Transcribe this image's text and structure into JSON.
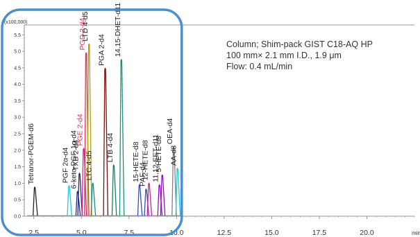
{
  "chart_data": {
    "type": "line",
    "scale_label": "(x100,000)",
    "x_unit": "min",
    "xlim": [
      2.0,
      22.5
    ],
    "ylim": [
      0,
      5.8
    ],
    "x_ticks": [
      2.5,
      5.0,
      7.5,
      10.0,
      12.5,
      15.0,
      17.5,
      20.0
    ],
    "x_tick_labels": [
      "2.5",
      "5.0",
      "7.5",
      "10.0",
      "12.5",
      "15.0",
      "17.5",
      "20.0"
    ],
    "y_ticks": [
      0.0,
      0.5,
      1.0,
      1.5,
      2.0,
      2.5,
      3.0,
      3.5,
      4.0,
      4.5,
      5.0,
      5.5
    ],
    "y_tick_labels": [
      "0.0",
      "0.5",
      "1.0",
      "1.5",
      "2.0",
      "2.5",
      "3.0",
      "3.5",
      "4.0",
      "4.5",
      "5.0",
      "5.5"
    ],
    "grid": false,
    "highlight_box": {
      "x_range": [
        2.0,
        10.2
      ],
      "color": "#4a90d0"
    },
    "peaks": [
      {
        "rt": 2.55,
        "height": 0.88,
        "color": "#222222",
        "label": "Tetranor-PGEM-d6",
        "label_color": "#222222"
      },
      {
        "rt": 4.35,
        "height": 0.92,
        "color": "#22c8d8",
        "label": "PGF 2α-d4",
        "label_color": "#222222"
      },
      {
        "rt": 4.8,
        "height": 0.75,
        "color": "#1f2a70",
        "label": "6-keto-PGF 1α-d4",
        "label_color": "#222222"
      },
      {
        "rt": 4.9,
        "height": 1.3,
        "color": "#1f2a70",
        "label": "TXB 2-d4",
        "label_color": "#222222"
      },
      {
        "rt": 5.12,
        "height": 2.05,
        "color": "#e0189a",
        "label": "PGE 2-d4",
        "label_color": "#e8305a"
      },
      {
        "rt": 5.25,
        "height": 4.95,
        "color": "#e8305a",
        "label": "PGD 2-d4",
        "label_color": "#e8305a"
      },
      {
        "rt": 5.4,
        "height": 5.22,
        "color": "#b8a000",
        "label": "LTD 4-d5",
        "label_color": "#222222"
      },
      {
        "rt": 5.6,
        "height": 1.0,
        "color": "#1a9080",
        "label": "LTC 4-d5",
        "label_color": "#222222"
      },
      {
        "rt": 6.25,
        "height": 4.48,
        "color": "#7a1010",
        "label": "PGA 2-d4",
        "label_color": "#222222"
      },
      {
        "rt": 6.7,
        "height": 1.55,
        "color": "#1a8060",
        "label": "LTB 4-d4",
        "label_color": "#222222"
      },
      {
        "rt": 7.1,
        "height": 4.75,
        "color": "#1a9080",
        "label": "14,15-DHET-d11",
        "label_color": "#222222"
      },
      {
        "rt": 8.05,
        "height": 0.95,
        "color": "#3050c0",
        "label": "15-HETE-d8",
        "label_color": "#222222"
      },
      {
        "rt": 8.4,
        "height": 0.82,
        "color": "#3050c0",
        "label": "PAF-d4",
        "label_color": "#222222"
      },
      {
        "rt": 8.55,
        "height": 1.0,
        "color": "#e0189a",
        "label": "12-HETE-d8",
        "label_color": "#222222"
      },
      {
        "rt": 9.1,
        "height": 0.95,
        "color": "#9010c0",
        "label": "11,12-EET-d11",
        "label_color": "#222222"
      },
      {
        "rt": 9.25,
        "height": 1.25,
        "color": "#9010c0",
        "label": "5-HETE-d8",
        "label_color": "#222222"
      },
      {
        "rt": 9.85,
        "height": 2.1,
        "color": "#808080",
        "label": "OEA-d4",
        "label_color": "#222222"
      },
      {
        "rt": 10.05,
        "height": 1.45,
        "color": "#22c8d8",
        "label": "AA-d8",
        "label_color": "#222222"
      }
    ]
  },
  "info": {
    "line1": "Column; Shim-pack GIST C18-AQ HP",
    "line2": "100 mm× 2.1 mm I.D., 1.9 μm",
    "line3": "Flow: 0.4 mL/min"
  }
}
